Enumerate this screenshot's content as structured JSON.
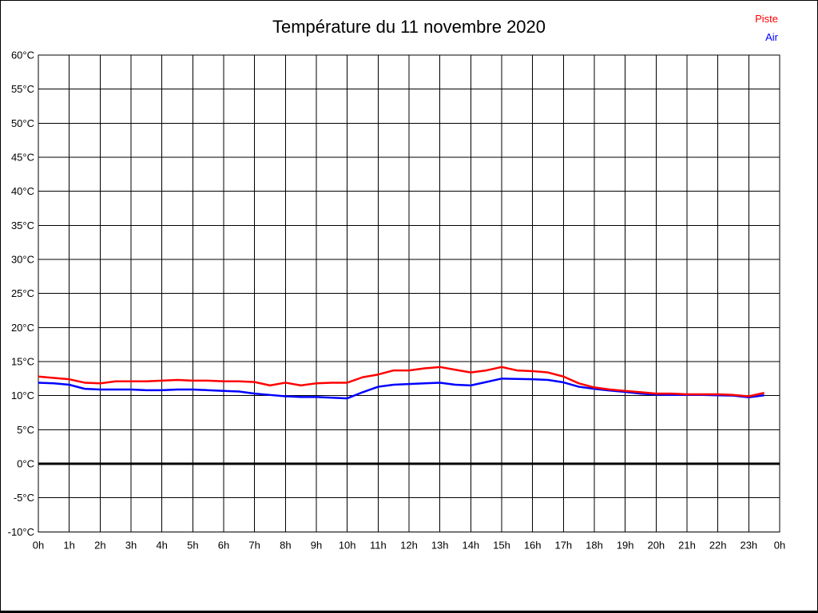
{
  "page": {
    "background": "#ffffff",
    "border_color": "#000000"
  },
  "header": {
    "title": "Température du 11 novembre 2020"
  },
  "chart_data": {
    "type": "line",
    "title": "Température du 11 novembre 2020",
    "xlabel": "",
    "ylabel": "°C",
    "xlim": [
      0,
      24
    ],
    "ylim": [
      -10,
      60
    ],
    "ytick_step": 5,
    "grid": true,
    "grid_color": "#000000",
    "zero_line": {
      "value": 0,
      "color": "#000000",
      "width": 3
    },
    "legend_position": "top-right",
    "xtick_labels": [
      "0h",
      "1h",
      "2h",
      "3h",
      "4h",
      "5h",
      "6h",
      "7h",
      "8h",
      "9h",
      "10h",
      "11h",
      "12h",
      "13h",
      "14h",
      "15h",
      "16h",
      "17h",
      "18h",
      "19h",
      "20h",
      "21h",
      "22h",
      "23h",
      "0h"
    ],
    "ytick_labels": [
      "60°C",
      "55°C",
      "50°C",
      "45°C",
      "40°C",
      "35°C",
      "30°C",
      "25°C",
      "20°C",
      "15°C",
      "10°C",
      "5°C",
      "0°C",
      "-5°C",
      "-10°C"
    ],
    "x": [
      0,
      0.5,
      1,
      1.5,
      2,
      2.5,
      3,
      3.5,
      4,
      4.5,
      5,
      5.5,
      6,
      6.5,
      7,
      7.5,
      8,
      8.5,
      9,
      9.5,
      10,
      10.5,
      11,
      11.5,
      12,
      12.5,
      13,
      13.5,
      14,
      14.5,
      15,
      15.5,
      16,
      16.5,
      17,
      17.5,
      18,
      18.5,
      19,
      19.5,
      20,
      20.5,
      21,
      21.5,
      22,
      22.5,
      23,
      23.5
    ],
    "series": [
      {
        "name": "Piste",
        "color": "#ff0000",
        "values": [
          12.8,
          12.6,
          12.4,
          11.9,
          11.8,
          12.1,
          12.1,
          12.1,
          12.2,
          12.3,
          12.2,
          12.2,
          12.1,
          12.1,
          12.0,
          11.5,
          11.9,
          11.5,
          11.8,
          11.9,
          11.9,
          12.7,
          13.1,
          13.7,
          13.7,
          14.0,
          14.2,
          13.8,
          13.4,
          13.7,
          14.2,
          13.7,
          13.6,
          13.4,
          12.8,
          11.8,
          11.2,
          10.9,
          10.7,
          10.5,
          10.3,
          10.3,
          10.2,
          10.2,
          10.2,
          10.1,
          9.9,
          10.4
        ]
      },
      {
        "name": "Air",
        "color": "#0000ff",
        "values": [
          11.9,
          11.8,
          11.6,
          11.0,
          10.9,
          10.9,
          10.9,
          10.8,
          10.8,
          10.9,
          10.9,
          10.8,
          10.7,
          10.6,
          10.3,
          10.1,
          9.9,
          9.8,
          9.8,
          9.7,
          9.6,
          10.5,
          11.3,
          11.6,
          11.7,
          11.8,
          11.9,
          11.6,
          11.5,
          12.0,
          12.5,
          12.45,
          12.4,
          12.3,
          11.95,
          11.3,
          11.0,
          10.75,
          10.55,
          10.3,
          10.15,
          10.1,
          10.1,
          10.1,
          10.05,
          10.0,
          9.75,
          10.05
        ]
      }
    ]
  }
}
